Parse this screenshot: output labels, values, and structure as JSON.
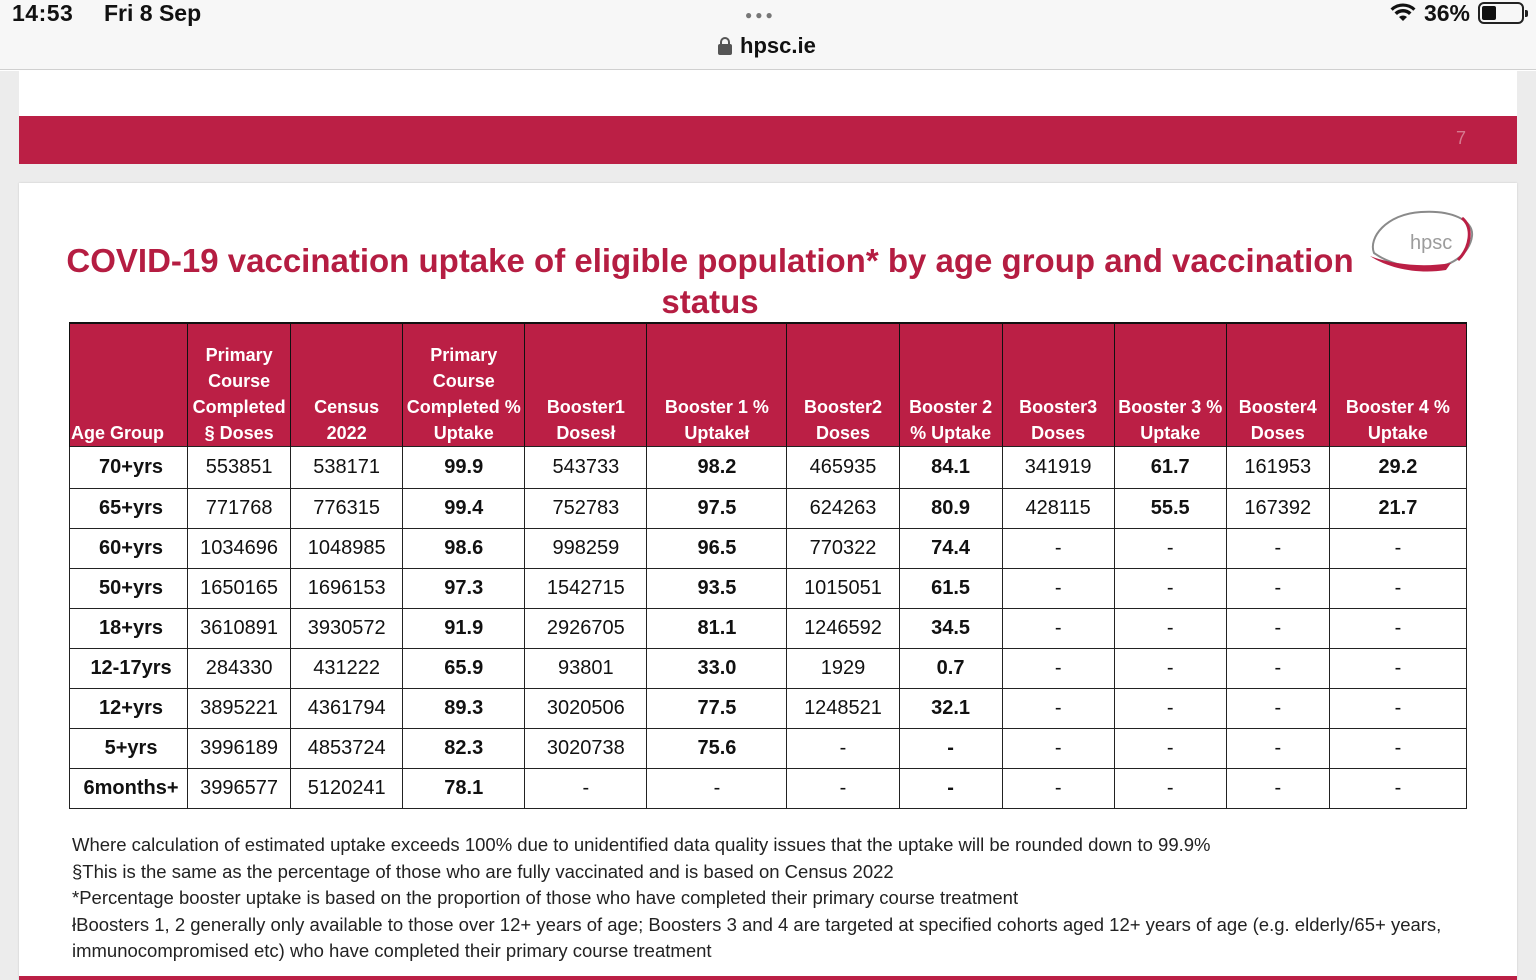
{
  "status_bar": {
    "time": "14:53",
    "date": "Fri 8 Sep",
    "battery_pct": "36%",
    "battery_fraction": 0.36
  },
  "browser": {
    "url": "hpsc.ie"
  },
  "slide": {
    "page_number": "7",
    "logo_text": "hpsc",
    "title": "COVID-19 vaccination uptake of eligible population* by age group and vaccination status",
    "colors": {
      "accent": "#bb1f45",
      "title": "#b51d42"
    }
  },
  "table": {
    "headers": [
      "Age Group",
      "Primary Course Completed § Doses",
      "Census 2022",
      "Primary Course Completed % Uptake",
      "Booster1 Dosesł",
      "Booster 1 % Uptakeł",
      "Booster2 Doses",
      "Booster 2 % Uptake",
      "Booster3 Doses",
      "Booster 3 % Uptake",
      "Booster4 Doses",
      "Booster 4 % Uptake"
    ],
    "rows": [
      [
        "70+yrs",
        "553851",
        "538171",
        "99.9",
        "543733",
        "98.2",
        "465935",
        "84.1",
        "341919",
        "61.7",
        "161953",
        "29.2"
      ],
      [
        "65+yrs",
        "771768",
        "776315",
        "99.4",
        "752783",
        "97.5",
        "624263",
        "80.9",
        "428115",
        "55.5",
        "167392",
        "21.7"
      ],
      [
        "60+yrs",
        "1034696",
        "1048985",
        "98.6",
        "998259",
        "96.5",
        "770322",
        "74.4",
        "-",
        "-",
        "-",
        "-"
      ],
      [
        "50+yrs",
        "1650165",
        "1696153",
        "97.3",
        "1542715",
        "93.5",
        "1015051",
        "61.5",
        "-",
        "-",
        "-",
        "-"
      ],
      [
        "18+yrs",
        "3610891",
        "3930572",
        "91.9",
        "2926705",
        "81.1",
        "1246592",
        "34.5",
        "-",
        "-",
        "-",
        "-"
      ],
      [
        "12-17yrs",
        "284330",
        "431222",
        "65.9",
        "93801",
        "33.0",
        "1929",
        "0.7",
        "-",
        "-",
        "-",
        "-"
      ],
      [
        "12+yrs",
        "3895221",
        "4361794",
        "89.3",
        "3020506",
        "77.5",
        "1248521",
        "32.1",
        "-",
        "-",
        "-",
        "-"
      ],
      [
        "5+yrs",
        "3996189",
        "4853724",
        "82.3",
        "3020738",
        "75.6",
        "-",
        "-",
        "-",
        "-",
        "-",
        "-"
      ],
      [
        "6months+",
        "3996577",
        "5120241",
        "78.1",
        "-",
        "-",
        "-",
        "-",
        "-",
        "-",
        "-",
        "-"
      ]
    ]
  },
  "footnotes": [
    "Where calculation of estimated uptake exceeds 100% due to unidentified data quality issues that the uptake will be rounded down to 99.9%",
    "§This is the same as the percentage of those who are fully vaccinated and is based on Census 2022",
    "*Percentage booster uptake is based on the proportion of those who have completed their primary course treatment",
    "łBoosters 1, 2 generally only available to those over 12+ years of age; Boosters 3 and 4 are targeted at specified cohorts aged 12+ years of age (e.g. elderly/65+ years, immunocompromised etc) who have completed their primary course treatment"
  ]
}
